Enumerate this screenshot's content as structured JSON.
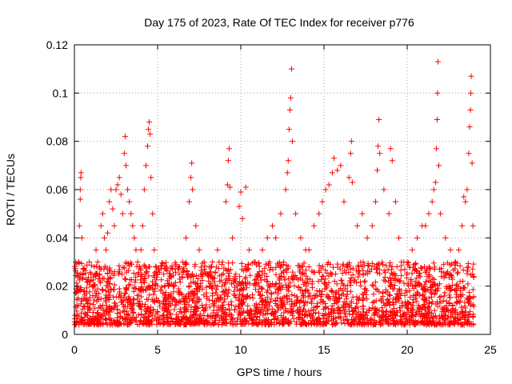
{
  "chart_data": {
    "type": "scatter",
    "title": "Day 175 of 2023, Rate Of TEC Index for receiver p776",
    "xlabel": "GPS time / hours",
    "ylabel": "ROTI / TECUs",
    "xlim": [
      0,
      25
    ],
    "ylim": [
      0,
      0.12
    ],
    "xticks": [
      0,
      5,
      10,
      15,
      20,
      25
    ],
    "yticks": [
      0,
      0.02,
      0.04,
      0.06,
      0.08,
      0.1,
      0.12
    ],
    "xtick_labels": [
      "0",
      "5",
      "10",
      "15",
      "20",
      "25"
    ],
    "ytick_labels": [
      "0",
      "0.02",
      "0.04",
      "0.06",
      "0.08",
      "0.1",
      "0.12"
    ],
    "grid": true,
    "marker": "+",
    "color": "#ff0000",
    "series": [
      {
        "name": "ROTI",
        "points": [
          [
            0.15,
            0.012
          ],
          [
            0.2,
            0.02
          ],
          [
            0.25,
            0.03
          ],
          [
            0.3,
            0.045
          ],
          [
            0.35,
            0.056
          ],
          [
            0.35,
            0.06
          ],
          [
            0.38,
            0.065
          ],
          [
            0.4,
            0.067
          ],
          [
            0.45,
            0.04
          ],
          [
            0.5,
            0.025
          ],
          [
            0.6,
            0.018
          ],
          [
            0.7,
            0.015
          ],
          [
            0.8,
            0.022
          ],
          [
            0.9,
            0.03
          ],
          [
            1.0,
            0.025
          ],
          [
            1.1,
            0.02
          ],
          [
            1.2,
            0.028
          ],
          [
            1.3,
            0.035
          ],
          [
            1.4,
            0.03
          ],
          [
            1.5,
            0.025
          ],
          [
            1.6,
            0.045
          ],
          [
            1.7,
            0.05
          ],
          [
            1.8,
            0.04
          ],
          [
            1.9,
            0.035
          ],
          [
            2.0,
            0.042
          ],
          [
            2.1,
            0.055
          ],
          [
            2.2,
            0.06
          ],
          [
            2.3,
            0.052
          ],
          [
            2.4,
            0.045
          ],
          [
            2.5,
            0.06
          ],
          [
            2.6,
            0.062
          ],
          [
            2.7,
            0.065
          ],
          [
            2.8,
            0.058
          ],
          [
            2.9,
            0.05
          ],
          [
            3.0,
            0.075
          ],
          [
            3.05,
            0.082
          ],
          [
            3.1,
            0.07
          ],
          [
            3.2,
            0.06
          ],
          [
            3.3,
            0.055
          ],
          [
            3.4,
            0.05
          ],
          [
            3.5,
            0.045
          ],
          [
            3.6,
            0.04
          ],
          [
            3.7,
            0.035
          ],
          [
            3.8,
            0.03
          ],
          [
            3.9,
            0.028
          ],
          [
            4.0,
            0.035
          ],
          [
            4.1,
            0.045
          ],
          [
            4.2,
            0.06
          ],
          [
            4.3,
            0.07
          ],
          [
            4.4,
            0.078
          ],
          [
            4.45,
            0.085
          ],
          [
            4.5,
            0.088
          ],
          [
            4.55,
            0.083
          ],
          [
            4.6,
            0.065
          ],
          [
            4.7,
            0.05
          ],
          [
            4.8,
            0.035
          ],
          [
            5.0,
            0.025
          ],
          [
            5.2,
            0.018
          ],
          [
            5.5,
            0.015
          ],
          [
            5.8,
            0.012
          ],
          [
            6.0,
            0.02
          ],
          [
            6.3,
            0.025
          ],
          [
            6.5,
            0.03
          ],
          [
            6.7,
            0.04
          ],
          [
            6.9,
            0.055
          ],
          [
            7.0,
            0.065
          ],
          [
            7.05,
            0.071
          ],
          [
            7.1,
            0.06
          ],
          [
            7.3,
            0.045
          ],
          [
            7.5,
            0.035
          ],
          [
            7.8,
            0.03
          ],
          [
            8.0,
            0.025
          ],
          [
            8.3,
            0.03
          ],
          [
            8.6,
            0.035
          ],
          [
            8.9,
            0.03
          ],
          [
            9.1,
            0.055
          ],
          [
            9.2,
            0.062
          ],
          [
            9.25,
            0.072
          ],
          [
            9.3,
            0.077
          ],
          [
            9.35,
            0.061
          ],
          [
            9.5,
            0.04
          ],
          [
            9.7,
            0.025
          ],
          [
            9.9,
            0.053
          ],
          [
            10.0,
            0.059
          ],
          [
            10.1,
            0.048
          ],
          [
            10.3,
            0.061
          ],
          [
            10.5,
            0.035
          ],
          [
            10.8,
            0.03
          ],
          [
            11.0,
            0.025
          ],
          [
            11.3,
            0.035
          ],
          [
            11.6,
            0.04
          ],
          [
            11.9,
            0.045
          ],
          [
            12.1,
            0.04
          ],
          [
            12.4,
            0.05
          ],
          [
            12.7,
            0.06
          ],
          [
            12.8,
            0.067
          ],
          [
            12.85,
            0.072
          ],
          [
            12.9,
            0.085
          ],
          [
            12.95,
            0.093
          ],
          [
            13.0,
            0.098
          ],
          [
            13.05,
            0.11
          ],
          [
            13.1,
            0.08
          ],
          [
            13.3,
            0.05
          ],
          [
            13.6,
            0.04
          ],
          [
            13.9,
            0.035
          ],
          [
            14.1,
            0.035
          ],
          [
            14.4,
            0.045
          ],
          [
            14.7,
            0.05
          ],
          [
            14.9,
            0.055
          ],
          [
            15.1,
            0.06
          ],
          [
            15.3,
            0.062
          ],
          [
            15.5,
            0.067
          ],
          [
            15.6,
            0.073
          ],
          [
            15.8,
            0.068
          ],
          [
            16.0,
            0.07
          ],
          [
            16.2,
            0.055
          ],
          [
            16.5,
            0.065
          ],
          [
            16.6,
            0.075
          ],
          [
            16.65,
            0.08
          ],
          [
            16.7,
            0.063
          ],
          [
            17.0,
            0.045
          ],
          [
            17.3,
            0.05
          ],
          [
            17.6,
            0.04
          ],
          [
            17.9,
            0.045
          ],
          [
            18.1,
            0.055
          ],
          [
            18.2,
            0.068
          ],
          [
            18.25,
            0.078
          ],
          [
            18.3,
            0.089
          ],
          [
            18.35,
            0.075
          ],
          [
            18.6,
            0.06
          ],
          [
            18.9,
            0.05
          ],
          [
            19.0,
            0.077
          ],
          [
            19.1,
            0.072
          ],
          [
            19.3,
            0.055
          ],
          [
            19.5,
            0.04
          ],
          [
            19.8,
            0.03
          ],
          [
            20.0,
            0.03
          ],
          [
            20.3,
            0.035
          ],
          [
            20.6,
            0.04
          ],
          [
            20.9,
            0.045
          ],
          [
            21.1,
            0.045
          ],
          [
            21.3,
            0.05
          ],
          [
            21.5,
            0.055
          ],
          [
            21.6,
            0.06
          ],
          [
            21.7,
            0.063
          ],
          [
            21.75,
            0.077
          ],
          [
            21.8,
            0.089
          ],
          [
            21.82,
            0.1
          ],
          [
            21.85,
            0.113
          ],
          [
            21.9,
            0.07
          ],
          [
            22.0,
            0.05
          ],
          [
            22.3,
            0.04
          ],
          [
            22.6,
            0.035
          ],
          [
            22.9,
            0.03
          ],
          [
            23.1,
            0.035
          ],
          [
            23.3,
            0.045
          ],
          [
            23.4,
            0.057
          ],
          [
            23.5,
            0.055
          ],
          [
            23.6,
            0.06
          ],
          [
            23.7,
            0.075
          ],
          [
            23.75,
            0.086
          ],
          [
            23.8,
            0.093
          ],
          [
            23.82,
            0.1
          ],
          [
            23.85,
            0.107
          ],
          [
            23.9,
            0.071
          ],
          [
            23.95,
            0.045
          ]
        ]
      }
    ],
    "background_band": {
      "note": "dense band of ROTI values across the full day",
      "x_range": [
        0,
        24
      ],
      "typical_range": [
        0.004,
        0.03
      ]
    }
  }
}
